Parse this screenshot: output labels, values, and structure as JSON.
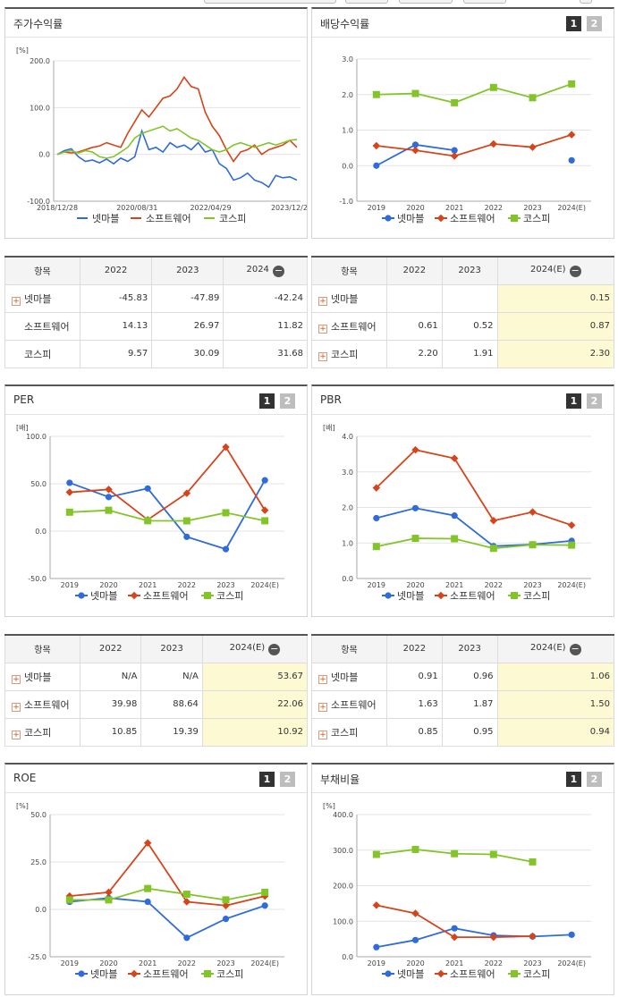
{
  "colors": {
    "netmarble": "#2f6bd9",
    "software": "#d6441b",
    "kospi": "#83c529"
  },
  "panels": {
    "stock_return": {
      "title": "주가수익률"
    },
    "dividend": {
      "title": "배당수익률",
      "btn1": "1",
      "btn2": "2"
    },
    "per": {
      "title": "PER",
      "btn1": "1",
      "btn2": "2"
    },
    "pbr": {
      "title": "PBR",
      "btn1": "1",
      "btn2": "2"
    },
    "roe": {
      "title": "ROE",
      "btn1": "1",
      "btn2": "2"
    },
    "debt": {
      "title": "부채비율",
      "btn1": "1",
      "btn2": "2"
    }
  },
  "legend": [
    "넷마블",
    "소프트웨어",
    "코스피"
  ],
  "tables": {
    "stock_return": {
      "headers": [
        "항목",
        "2022",
        "2023",
        "2024"
      ],
      "rows": [
        {
          "name": "넷마블",
          "plus": true,
          "v": [
            "-45.83",
            "-47.89",
            "-42.24"
          ]
        },
        {
          "name": "소프트웨어",
          "plus": false,
          "v": [
            "14.13",
            "26.97",
            "11.82"
          ]
        },
        {
          "name": "코스피",
          "plus": false,
          "v": [
            "9.57",
            "30.09",
            "31.68"
          ]
        }
      ]
    },
    "dividend": {
      "headers": [
        "항목",
        "2022",
        "2023",
        "2024(E)"
      ],
      "rows": [
        {
          "name": "넷마블",
          "plus": true,
          "v": [
            "",
            "",
            "0.15"
          ]
        },
        {
          "name": "소프트웨어",
          "plus": true,
          "v": [
            "0.61",
            "0.52",
            "0.87"
          ]
        },
        {
          "name": "코스피",
          "plus": true,
          "v": [
            "2.20",
            "1.91",
            "2.30"
          ]
        }
      ]
    },
    "per": {
      "headers": [
        "항목",
        "2022",
        "2023",
        "2024(E)"
      ],
      "rows": [
        {
          "name": "넷마블",
          "plus": true,
          "v": [
            "N/A",
            "N/A",
            "53.67"
          ]
        },
        {
          "name": "소프트웨어",
          "plus": true,
          "v": [
            "39.98",
            "88.64",
            "22.06"
          ]
        },
        {
          "name": "코스피",
          "plus": true,
          "v": [
            "10.85",
            "19.39",
            "10.92"
          ]
        }
      ]
    },
    "pbr": {
      "headers": [
        "항목",
        "2022",
        "2023",
        "2024(E)"
      ],
      "rows": [
        {
          "name": "넷마블",
          "plus": true,
          "v": [
            "0.91",
            "0.96",
            "1.06"
          ]
        },
        {
          "name": "소프트웨어",
          "plus": true,
          "v": [
            "1.63",
            "1.87",
            "1.50"
          ]
        },
        {
          "name": "코스피",
          "plus": true,
          "v": [
            "0.85",
            "0.95",
            "0.94"
          ]
        }
      ]
    }
  },
  "chart_data": [
    {
      "id": "stock_return",
      "type": "line",
      "unit": "[%]",
      "ylim": [
        -100,
        200
      ],
      "yticks": [
        "200.0",
        "100.0",
        "0.0",
        "-100.0"
      ],
      "xticks": [
        "2018/12/28",
        "2020/08/31",
        "2022/04/29",
        "2023/12/28"
      ],
      "series": [
        {
          "name": "넷마블",
          "values": [
            0,
            8,
            12,
            -5,
            -15,
            -12,
            -18,
            -10,
            -20,
            -8,
            -15,
            -5,
            50,
            10,
            15,
            5,
            25,
            15,
            20,
            10,
            25,
            5,
            10,
            -20,
            -30,
            -55,
            -50,
            -40,
            -55,
            -60,
            -70,
            -45,
            -50,
            -48,
            -55
          ]
        },
        {
          "name": "소프트웨어",
          "values": [
            0,
            5,
            3,
            5,
            10,
            15,
            18,
            25,
            20,
            15,
            45,
            70,
            95,
            80,
            100,
            120,
            125,
            140,
            165,
            145,
            140,
            90,
            60,
            40,
            10,
            -15,
            5,
            10,
            20,
            0,
            10,
            15,
            20,
            30,
            15
          ]
        },
        {
          "name": "코스피",
          "values": [
            0,
            5,
            8,
            3,
            8,
            5,
            -5,
            -8,
            -5,
            5,
            15,
            35,
            45,
            50,
            55,
            60,
            50,
            55,
            45,
            35,
            30,
            20,
            10,
            5,
            10,
            20,
            25,
            20,
            15,
            20,
            25,
            20,
            25,
            30,
            32
          ]
        }
      ]
    },
    {
      "id": "dividend",
      "type": "line",
      "unit": "",
      "ylim": [
        -1,
        3
      ],
      "yticks": [
        "3.0",
        "2.0",
        "1.0",
        "0.0",
        "-1.0"
      ],
      "categories": [
        "2019",
        "2020",
        "2021",
        "2022",
        "2023",
        "2024(E)"
      ],
      "series": [
        {
          "name": "넷마블",
          "values": [
            0.0,
            0.59,
            0.43,
            null,
            null,
            0.15
          ]
        },
        {
          "name": "소프트웨어",
          "values": [
            0.56,
            0.43,
            0.27,
            0.61,
            0.52,
            0.87
          ]
        },
        {
          "name": "코스피",
          "values": [
            2.0,
            2.03,
            1.77,
            2.2,
            1.91,
            2.3
          ]
        }
      ]
    },
    {
      "id": "per",
      "type": "line",
      "unit": "[배]",
      "ylim": [
        -50,
        100
      ],
      "yticks": [
        "100.0",
        "50.0",
        "0.0",
        "-50.0"
      ],
      "categories": [
        "2019",
        "2020",
        "2021",
        "2022",
        "2023",
        "2024(E)"
      ],
      "series": [
        {
          "name": "넷마블",
          "values": [
            51,
            36,
            45,
            -6,
            -19,
            53.67
          ]
        },
        {
          "name": "소프트웨어",
          "values": [
            41,
            44,
            12,
            39.98,
            88.64,
            22.06
          ]
        },
        {
          "name": "코스피",
          "values": [
            20,
            22,
            11,
            10.85,
            19.39,
            10.92
          ]
        }
      ]
    },
    {
      "id": "pbr",
      "type": "line",
      "unit": "[배]",
      "ylim": [
        0,
        4
      ],
      "yticks": [
        "4.0",
        "3.0",
        "2.0",
        "1.0",
        "0.0"
      ],
      "categories": [
        "2019",
        "2020",
        "2021",
        "2022",
        "2023",
        "2024(E)"
      ],
      "series": [
        {
          "name": "넷마블",
          "values": [
            1.7,
            1.98,
            1.77,
            0.91,
            0.96,
            1.06
          ]
        },
        {
          "name": "소프트웨어",
          "values": [
            2.55,
            3.62,
            3.38,
            1.63,
            1.87,
            1.5
          ]
        },
        {
          "name": "코스피",
          "values": [
            0.9,
            1.13,
            1.12,
            0.85,
            0.95,
            0.94
          ]
        }
      ]
    },
    {
      "id": "roe",
      "type": "line",
      "unit": "[%]",
      "ylim": [
        -25,
        50
      ],
      "yticks": [
        "50.0",
        "25.0",
        "0.0",
        "-25.0"
      ],
      "categories": [
        "2019",
        "2020",
        "2021",
        "2022",
        "2023",
        "2024(E)"
      ],
      "series": [
        {
          "name": "넷마블",
          "values": [
            4,
            6,
            4,
            -15,
            -5,
            2
          ]
        },
        {
          "name": "소프트웨어",
          "values": [
            7,
            9,
            35,
            4,
            2,
            7
          ]
        },
        {
          "name": "코스피",
          "values": [
            5,
            5,
            11,
            8,
            5,
            9
          ]
        }
      ]
    },
    {
      "id": "debt",
      "type": "line",
      "unit": "[%]",
      "ylim": [
        0,
        400
      ],
      "yticks": [
        "400.0",
        "300.0",
        "200.0",
        "100.0",
        "0.0"
      ],
      "categories": [
        "2019",
        "2020",
        "2021",
        "2022",
        "2023",
        "2024(E)"
      ],
      "series": [
        {
          "name": "넷마블",
          "values": [
            27,
            47,
            80,
            60,
            57,
            62
          ]
        },
        {
          "name": "소프트웨어",
          "values": [
            145,
            122,
            55,
            55,
            58,
            null
          ]
        },
        {
          "name": "코스피",
          "values": [
            288,
            302,
            290,
            288,
            267,
            null
          ]
        }
      ]
    }
  ]
}
